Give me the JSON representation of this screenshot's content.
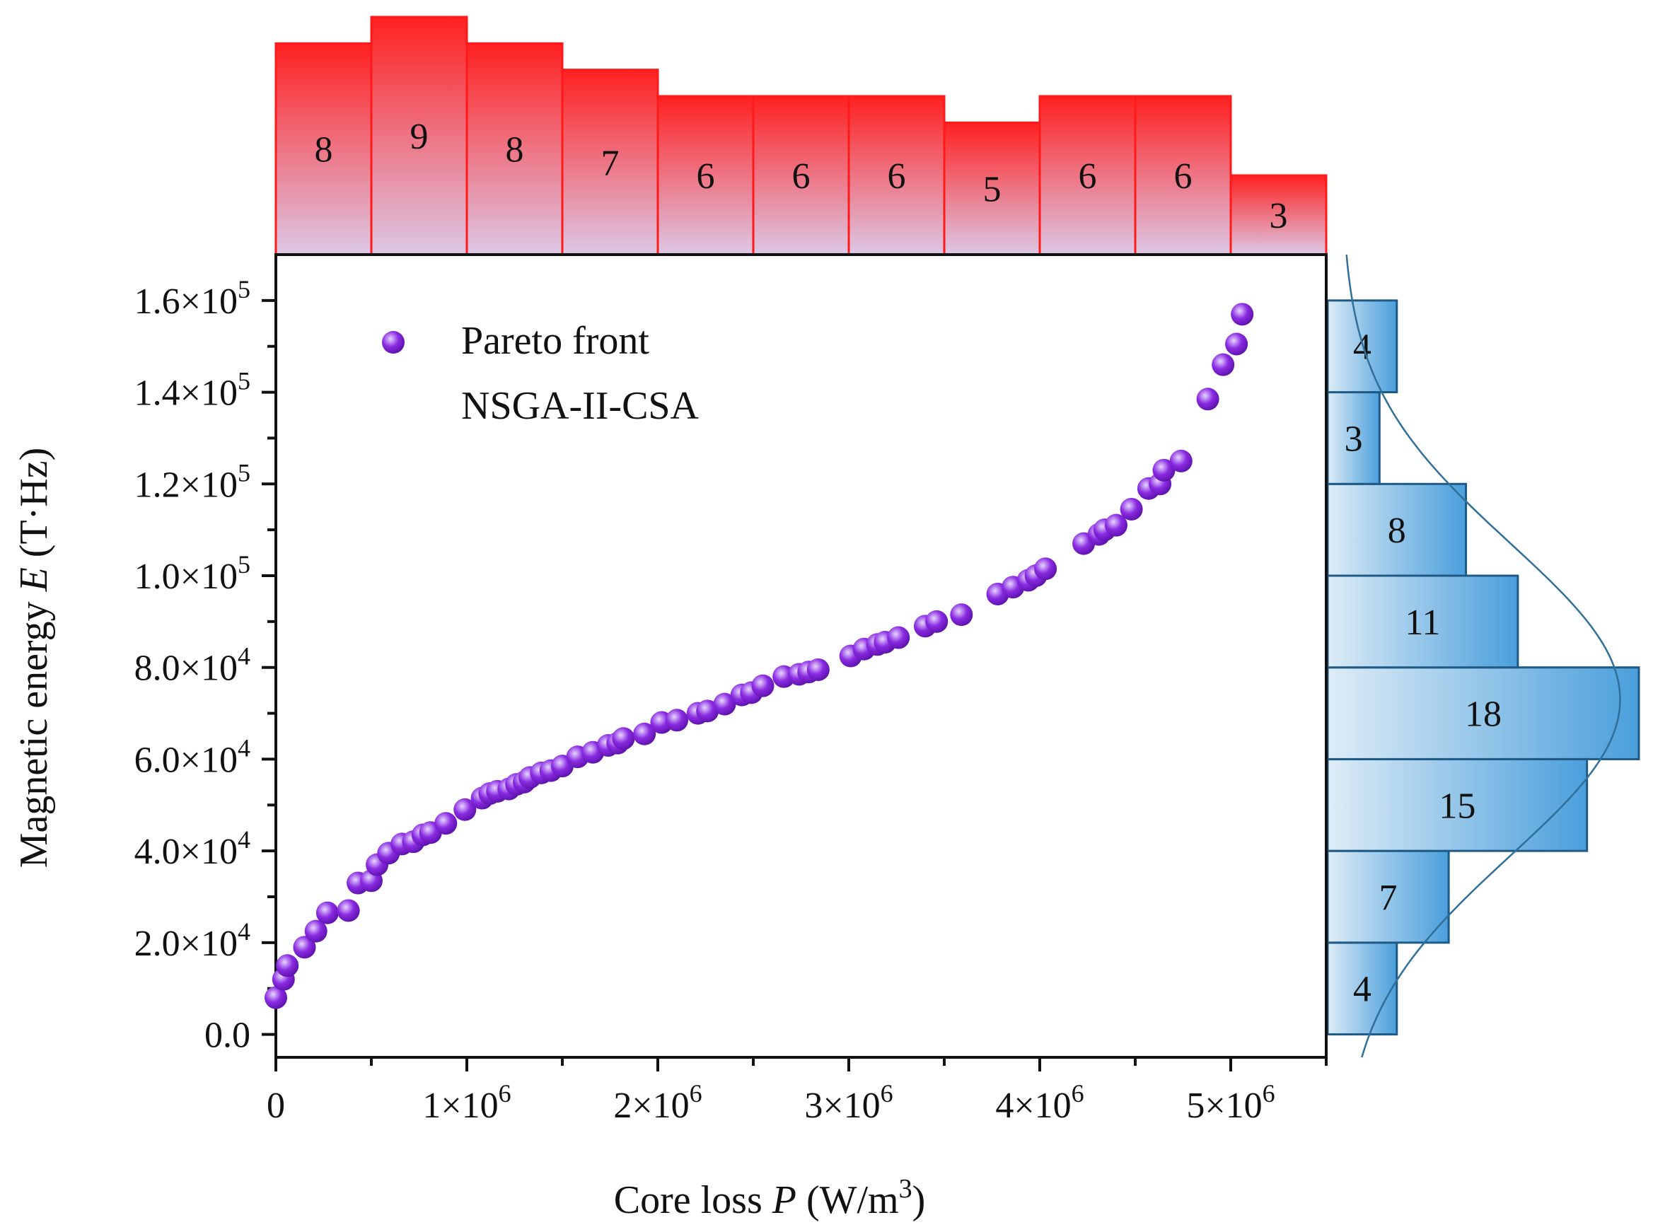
{
  "chart_data": {
    "type": "scatter",
    "title": "",
    "xlabel": {
      "text": "Core loss ",
      "italic": "P",
      "units": " (W/m",
      "sup": "3",
      "close": ")"
    },
    "ylabel": {
      "text": "Magnetic energy ",
      "italic": "E",
      "units": " (T·Hz)"
    },
    "xlim": [
      0,
      5500000
    ],
    "ylim": [
      -5000,
      170000
    ],
    "x_ticks": [
      {
        "value": 0,
        "mantissa": "0",
        "exp": ""
      },
      {
        "value": 1000000,
        "mantissa": "1×10",
        "exp": "6"
      },
      {
        "value": 2000000,
        "mantissa": "2×10",
        "exp": "6"
      },
      {
        "value": 3000000,
        "mantissa": "3×10",
        "exp": "6"
      },
      {
        "value": 4000000,
        "mantissa": "4×10",
        "exp": "6"
      },
      {
        "value": 5000000,
        "mantissa": "5×10",
        "exp": "6"
      }
    ],
    "y_ticks": [
      {
        "value": 0,
        "mantissa": "0.0",
        "exp": ""
      },
      {
        "value": 20000,
        "mantissa": "2.0×10",
        "exp": "4"
      },
      {
        "value": 40000,
        "mantissa": "4.0×10",
        "exp": "4"
      },
      {
        "value": 60000,
        "mantissa": "6.0×10",
        "exp": "4"
      },
      {
        "value": 80000,
        "mantissa": "8.0×10",
        "exp": "4"
      },
      {
        "value": 100000,
        "mantissa": "1.0×10",
        "exp": "5"
      },
      {
        "value": 120000,
        "mantissa": "1.2×10",
        "exp": "5"
      },
      {
        "value": 140000,
        "mantissa": "1.4×10",
        "exp": "5"
      },
      {
        "value": 160000,
        "mantissa": "1.6×10",
        "exp": "5"
      }
    ],
    "legend": {
      "line1": "Pareto front",
      "line2": "NSGA-II-CSA",
      "position": "top-left"
    },
    "colors": {
      "marker": "#8a2be2",
      "marker_highlight": "#e8d6ff",
      "top_hist": "#ff2020",
      "top_hist_fade": "#dcc8e6",
      "right_hist": "#4a9fdc",
      "right_hist_fade": "#deecf6",
      "right_hist_edge": "#1f5a86",
      "curve": "#2f6f99"
    },
    "series": [
      {
        "name": "Pareto front NSGA-II-CSA",
        "points": [
          [
            0,
            8000
          ],
          [
            40000,
            12000
          ],
          [
            60000,
            15000
          ],
          [
            150000,
            19000
          ],
          [
            210000,
            22500
          ],
          [
            270000,
            26500
          ],
          [
            380000,
            27000
          ],
          [
            430000,
            33000
          ],
          [
            500000,
            33500
          ],
          [
            530000,
            37000
          ],
          [
            590000,
            39500
          ],
          [
            660000,
            41500
          ],
          [
            720000,
            42000
          ],
          [
            770000,
            43500
          ],
          [
            810000,
            44000
          ],
          [
            890000,
            46000
          ],
          [
            990000,
            49000
          ],
          [
            1080000,
            51500
          ],
          [
            1120000,
            52500
          ],
          [
            1160000,
            53000
          ],
          [
            1220000,
            53500
          ],
          [
            1260000,
            54500
          ],
          [
            1300000,
            55000
          ],
          [
            1330000,
            56000
          ],
          [
            1390000,
            57000
          ],
          [
            1440000,
            57500
          ],
          [
            1500000,
            58500
          ],
          [
            1580000,
            60500
          ],
          [
            1660000,
            61500
          ],
          [
            1740000,
            63000
          ],
          [
            1790000,
            63500
          ],
          [
            1820000,
            64500
          ],
          [
            1930000,
            65500
          ],
          [
            2020000,
            68000
          ],
          [
            2100000,
            68500
          ],
          [
            2210000,
            70000
          ],
          [
            2260000,
            70500
          ],
          [
            2350000,
            72000
          ],
          [
            2440000,
            74000
          ],
          [
            2490000,
            74500
          ],
          [
            2550000,
            76000
          ],
          [
            2660000,
            78000
          ],
          [
            2740000,
            78500
          ],
          [
            2790000,
            79000
          ],
          [
            2840000,
            79500
          ],
          [
            3010000,
            82500
          ],
          [
            3080000,
            84000
          ],
          [
            3150000,
            85000
          ],
          [
            3190000,
            85500
          ],
          [
            3260000,
            86500
          ],
          [
            3400000,
            89000
          ],
          [
            3460000,
            90000
          ],
          [
            3590000,
            91500
          ],
          [
            3780000,
            96000
          ],
          [
            3860000,
            97500
          ],
          [
            3940000,
            99000
          ],
          [
            3980000,
            100000
          ],
          [
            4030000,
            101500
          ],
          [
            4230000,
            107000
          ],
          [
            4310000,
            109000
          ],
          [
            4340000,
            110000
          ],
          [
            4400000,
            111000
          ],
          [
            4480000,
            114500
          ],
          [
            4570000,
            119000
          ],
          [
            4630000,
            120000
          ],
          [
            4650000,
            123000
          ],
          [
            4740000,
            125000
          ],
          [
            4880000,
            138500
          ],
          [
            4960000,
            146000
          ],
          [
            5030000,
            150500
          ],
          [
            5060000,
            157000
          ]
        ]
      }
    ],
    "top_histogram": {
      "bin_edges": [
        0,
        500000,
        1000000,
        1500000,
        2000000,
        2500000,
        3000000,
        3500000,
        4000000,
        4500000,
        5000000,
        5500000
      ],
      "counts": [
        8,
        9,
        8,
        7,
        6,
        6,
        6,
        5,
        6,
        6,
        3
      ],
      "labels": [
        "8",
        "9",
        "8",
        "7",
        "6",
        "6",
        "6",
        "5",
        "6",
        "6",
        "3"
      ]
    },
    "right_histogram": {
      "bin_edges": [
        0,
        20000,
        40000,
        60000,
        80000,
        100000,
        120000,
        140000,
        160000
      ],
      "counts": [
        4,
        7,
        15,
        18,
        11,
        8,
        3,
        4
      ],
      "labels": [
        "4",
        "7",
        "15",
        "18",
        "11",
        "8",
        "3",
        "4"
      ],
      "density_curve": {
        "type": "normal",
        "mean": 73000,
        "sd": 34000
      }
    }
  }
}
